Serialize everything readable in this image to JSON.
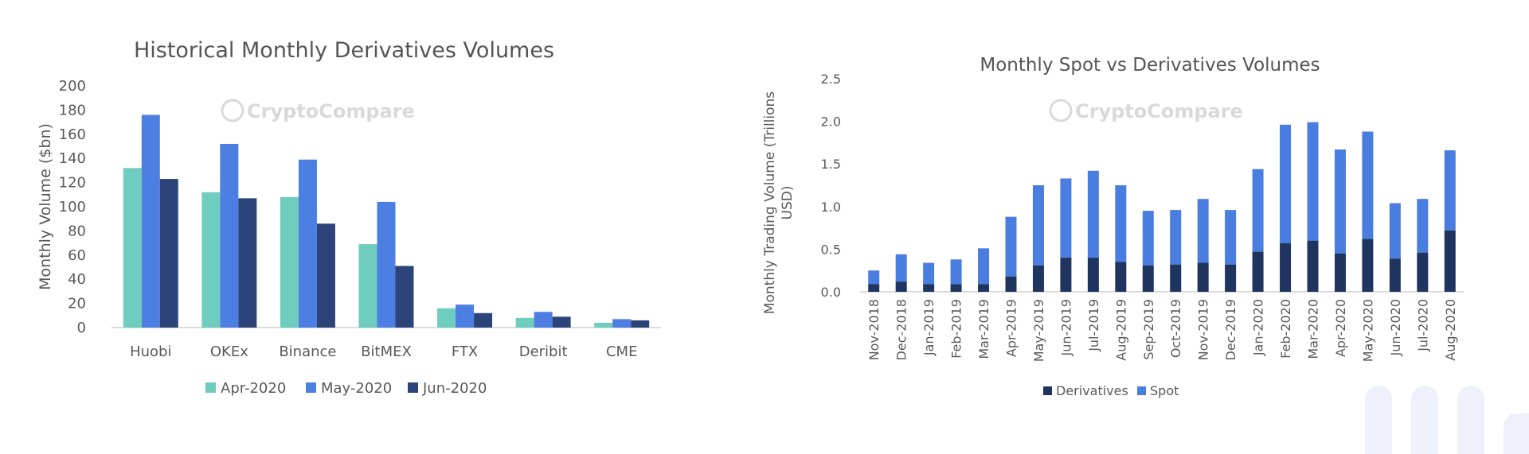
{
  "colors": {
    "apr": "#6fcdbf",
    "may": "#4d7fe3",
    "jun": "#2c4479",
    "derivatives": "#1f3560",
    "spot": "#4a7de0",
    "axis_text": "#595959",
    "title_text": "#555555",
    "axis_line": "#d0d0d0",
    "watermark": "#d9d9d9",
    "deco": "#eef1fb"
  },
  "watermark": {
    "left_text": "CryptoCompare",
    "right_text": "CryptoCompare",
    "icon": "cryptocompare-logo-icon"
  },
  "chart_data": [
    {
      "type": "bar",
      "title": "Historical Monthly Derivatives Volumes",
      "ylabel": "Monthly Volume ($bn)",
      "xlabel": "",
      "ylim": [
        0,
        200
      ],
      "yticks": [
        "0",
        "20",
        "40",
        "60",
        "80",
        "100",
        "120",
        "140",
        "160",
        "180",
        "200"
      ],
      "categories": [
        "Huobi",
        "OKEx",
        "Binance",
        "BitMEX",
        "FTX",
        "Deribit",
        "CME"
      ],
      "series": [
        {
          "name": "Apr-2020",
          "values": [
            132,
            112,
            108,
            69,
            16,
            8,
            4
          ]
        },
        {
          "name": "May-2020",
          "values": [
            176,
            152,
            139,
            104,
            19,
            13,
            7
          ]
        },
        {
          "name": "Jun-2020",
          "values": [
            123,
            107,
            86,
            51,
            12,
            9,
            6
          ]
        }
      ],
      "legend_position": "bottom",
      "grid": false
    },
    {
      "type": "bar",
      "stacked": true,
      "title": "Monthly Spot vs Derivatives Volumes",
      "ylabel": "Monthly Trading Volume (Trillions USD)",
      "xlabel": "",
      "ylim": [
        0,
        2.5
      ],
      "yticks": [
        "0.0",
        "0.5",
        "1.0",
        "1.5",
        "2.0",
        "2.5"
      ],
      "categories": [
        "Nov-2018",
        "Dec-2018",
        "Jan-2019",
        "Feb-2019",
        "Mar-2019",
        "Apr-2019",
        "May-2019",
        "Jun-2019",
        "Jul-2019",
        "Aug-2019",
        "Sep-2019",
        "Oct-2019",
        "Nov-2019",
        "Dec-2019",
        "Jan-2020",
        "Feb-2020",
        "Mar-2020",
        "Apr-2020",
        "May-2020",
        "Jun-2020",
        "Jul-2020",
        "Aug-2020"
      ],
      "series": [
        {
          "name": "Derivatives",
          "values": [
            0.09,
            0.12,
            0.09,
            0.09,
            0.09,
            0.18,
            0.31,
            0.4,
            0.4,
            0.35,
            0.31,
            0.32,
            0.34,
            0.32,
            0.47,
            0.57,
            0.6,
            0.45,
            0.62,
            0.39,
            0.46,
            0.72
          ]
        },
        {
          "name": "Spot",
          "values": [
            0.16,
            0.32,
            0.25,
            0.29,
            0.42,
            0.7,
            0.94,
            0.93,
            1.02,
            0.9,
            0.64,
            0.64,
            0.75,
            0.64,
            0.97,
            1.39,
            1.39,
            1.22,
            1.26,
            0.65,
            0.63,
            0.94
          ]
        }
      ],
      "legend_position": "bottom",
      "grid": false
    }
  ]
}
